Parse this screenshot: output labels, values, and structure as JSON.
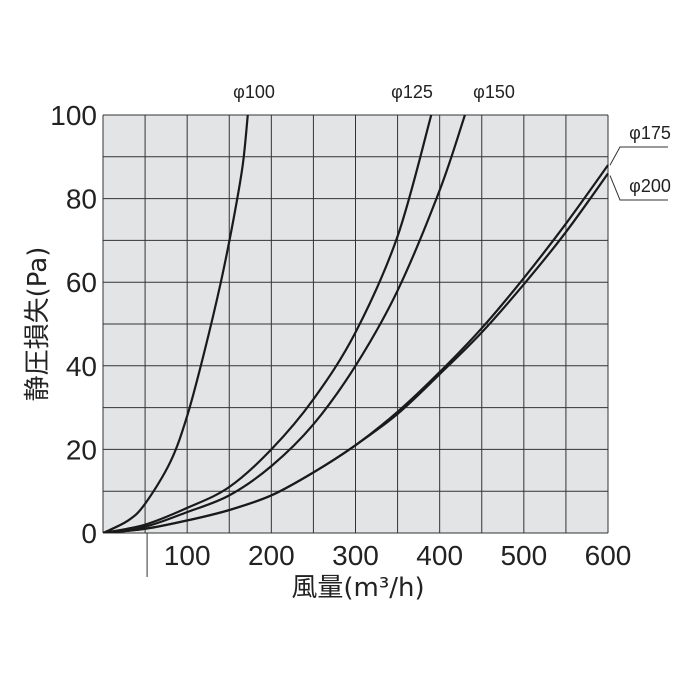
{
  "chart_data": {
    "type": "line",
    "xlabel": "風量(m³/h)",
    "ylabel": "静圧損失(Pa)",
    "xlim": [
      0,
      600
    ],
    "ylim": [
      0,
      100
    ],
    "grid": true,
    "x_ticks": [
      "100",
      "200",
      "300",
      "400",
      "500",
      "600"
    ],
    "y_ticks": [
      "0",
      "20",
      "40",
      "60",
      "80",
      "100"
    ],
    "plot_background": "#e3e4e6",
    "line_color": "#1a1a1a",
    "series": [
      {
        "name": "φ100",
        "points": [
          [
            0,
            0
          ],
          [
            30,
            3
          ],
          [
            50,
            7
          ],
          [
            80,
            17
          ],
          [
            100,
            28
          ],
          [
            120,
            43
          ],
          [
            140,
            60
          ],
          [
            155,
            75
          ],
          [
            166,
            88
          ],
          [
            172,
            100
          ]
        ]
      },
      {
        "name": "φ125",
        "points": [
          [
            0,
            0
          ],
          [
            50,
            2
          ],
          [
            100,
            6
          ],
          [
            150,
            11
          ],
          [
            200,
            20
          ],
          [
            250,
            32
          ],
          [
            300,
            48
          ],
          [
            350,
            71
          ],
          [
            390,
            100
          ]
        ]
      },
      {
        "name": "φ150",
        "points": [
          [
            0,
            0
          ],
          [
            50,
            1.5
          ],
          [
            100,
            5
          ],
          [
            150,
            9
          ],
          [
            200,
            16
          ],
          [
            250,
            26
          ],
          [
            300,
            40
          ],
          [
            350,
            58
          ],
          [
            400,
            82
          ],
          [
            430,
            100
          ]
        ]
      },
      {
        "name": "φ175",
        "points": [
          [
            0,
            0
          ],
          [
            50,
            1
          ],
          [
            100,
            3
          ],
          [
            150,
            5.5
          ],
          [
            200,
            9
          ],
          [
            250,
            14.5
          ],
          [
            300,
            21
          ],
          [
            350,
            29
          ],
          [
            400,
            38.5
          ],
          [
            450,
            49
          ],
          [
            500,
            61
          ],
          [
            550,
            74
          ],
          [
            600,
            88
          ]
        ]
      },
      {
        "name": "φ200",
        "points": [
          [
            0,
            0
          ],
          [
            50,
            1
          ],
          [
            100,
            3
          ],
          [
            150,
            5.5
          ],
          [
            200,
            9
          ],
          [
            250,
            14.5
          ],
          [
            300,
            21
          ],
          [
            350,
            28.5
          ],
          [
            400,
            38
          ],
          [
            450,
            48
          ],
          [
            500,
            59.5
          ],
          [
            550,
            72
          ],
          [
            600,
            86
          ]
        ]
      }
    ]
  }
}
